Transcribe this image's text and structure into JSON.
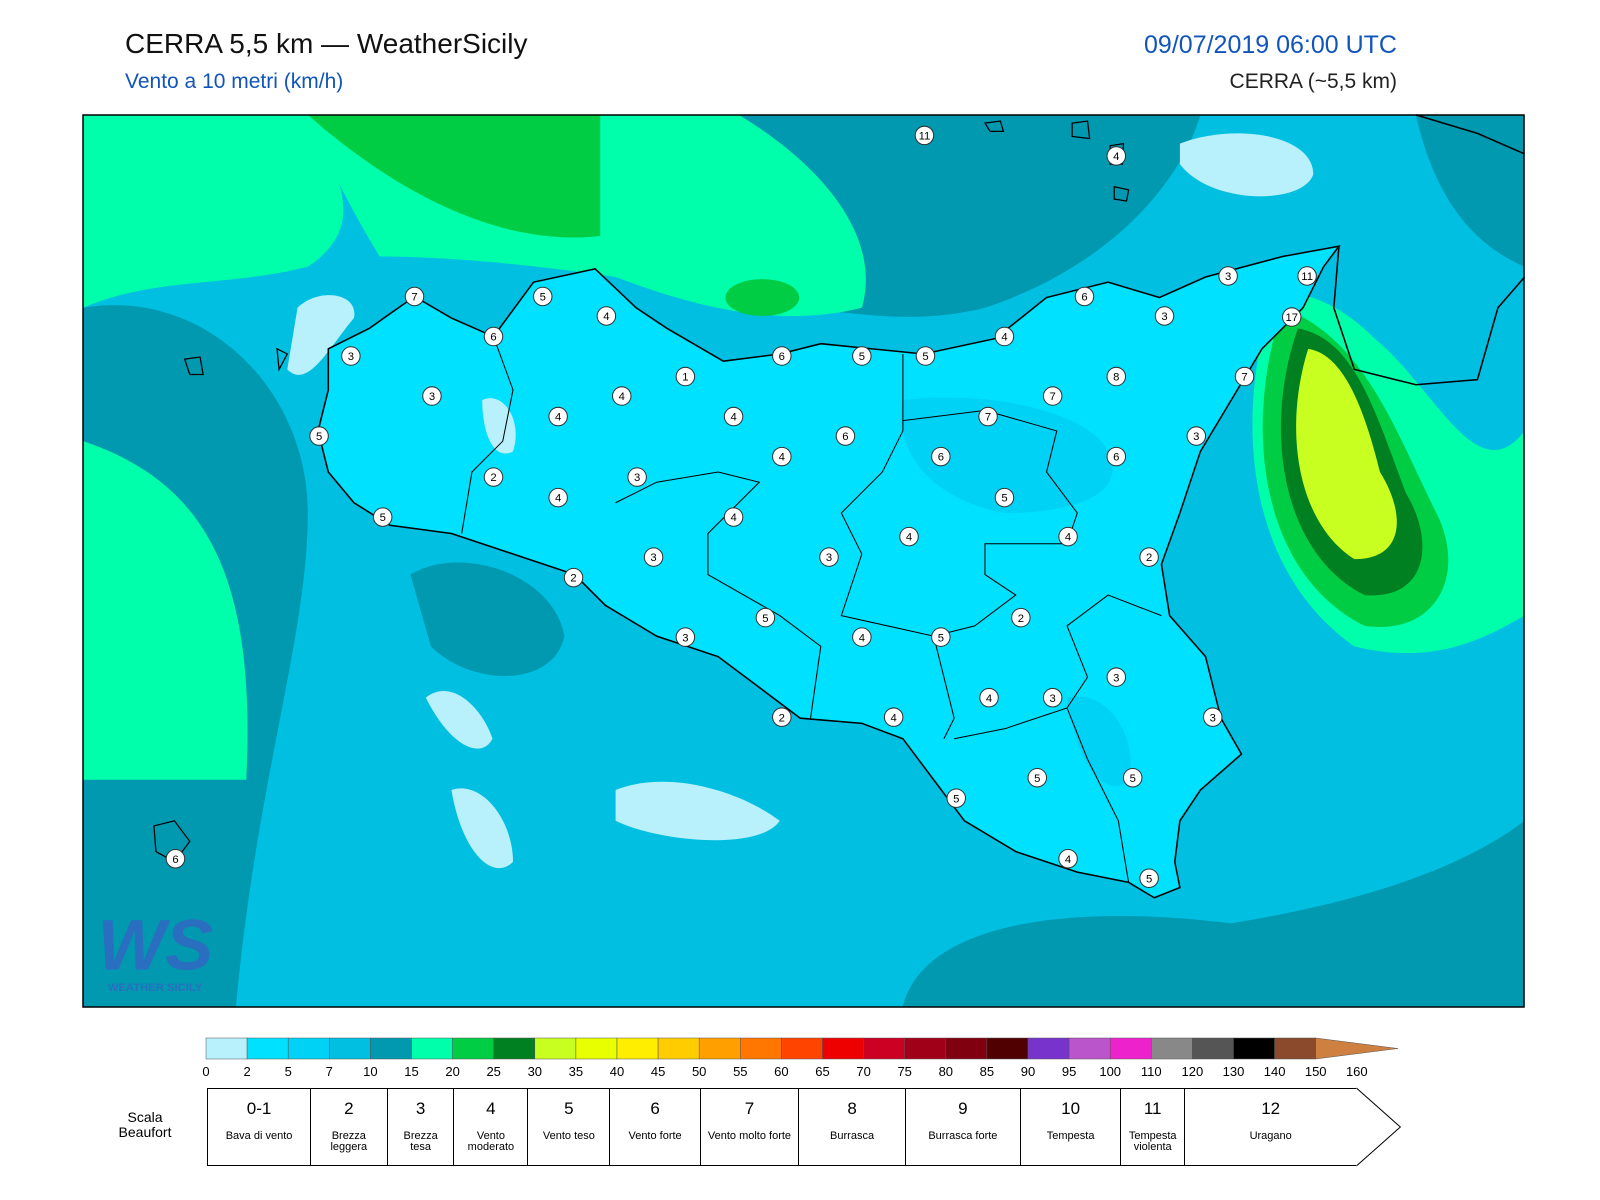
{
  "header": {
    "title": "CERRA 5,5 km — WeatherSicily",
    "subtitle": "Vento a 10 metri (km/h)",
    "datetime": "09/07/2019 06:00 UTC",
    "model": "CERRA (~5,5 km)"
  },
  "map": {
    "stations": [
      11,
      4,
      3,
      11,
      17,
      7,
      5,
      4,
      6,
      6,
      3,
      4,
      3,
      6,
      5,
      5,
      1,
      8,
      7,
      3,
      4,
      7,
      4,
      4,
      7,
      5,
      6,
      3,
      4,
      6,
      6,
      2,
      3,
      4,
      5,
      5,
      4,
      4,
      4,
      3,
      3,
      2,
      2,
      5,
      2,
      3,
      4,
      5,
      3,
      4,
      3,
      3,
      2,
      4,
      5,
      5,
      5,
      4,
      5,
      6
    ]
  },
  "logo": {
    "mark": "WS",
    "name": "WEATHER SICILY"
  },
  "colorbar": {
    "levels": [
      0,
      2,
      5,
      7,
      10,
      15,
      20,
      25,
      30,
      35,
      40,
      45,
      50,
      55,
      60,
      65,
      70,
      75,
      80,
      85,
      90,
      95,
      100,
      110,
      120,
      130,
      140,
      150,
      160
    ],
    "colors": [
      "#b8f0fb",
      "#00e0ff",
      "#00d2f5",
      "#00bfe0",
      "#0099b0",
      "#00ffaa",
      "#00cc44",
      "#008020",
      "#c8ff20",
      "#e8ff00",
      "#ffee00",
      "#ffcc00",
      "#ffa000",
      "#ff7700",
      "#ff4400",
      "#ee0000",
      "#cc0022",
      "#a00018",
      "#800010",
      "#500000",
      "#7733cc",
      "#bb55cc",
      "#ee22cc",
      "#888888",
      "#555555",
      "#000000",
      "#8b4a2b",
      "#cd8040"
    ]
  },
  "beaufort": {
    "title": "Scala Beaufort",
    "classes": [
      {
        "force": "0-1",
        "label": "Bava di vento"
      },
      {
        "force": "2",
        "label": "Brezza leggera"
      },
      {
        "force": "3",
        "label": "Brezza tesa"
      },
      {
        "force": "4",
        "label": "Vento moderato"
      },
      {
        "force": "5",
        "label": "Vento teso"
      },
      {
        "force": "6",
        "label": "Vento forte"
      },
      {
        "force": "7",
        "label": "Vento molto forte"
      },
      {
        "force": "8",
        "label": "Burrasca"
      },
      {
        "force": "9",
        "label": "Burrasca forte"
      },
      {
        "force": "10",
        "label": "Tempesta"
      },
      {
        "force": "11",
        "label": "Tempesta violenta"
      },
      {
        "force": "12",
        "label": "Uragano"
      }
    ]
  }
}
